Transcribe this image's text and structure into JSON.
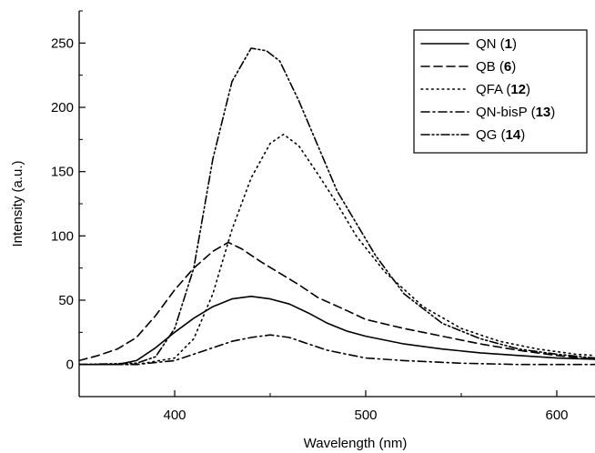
{
  "chart_data": {
    "type": "line",
    "title": "",
    "xlabel": "Wavelength (nm)",
    "ylabel": "Intensity (a.u.)",
    "xlim": [
      350,
      620
    ],
    "ylim": [
      -25,
      275
    ],
    "x_ticks": [
      400,
      500,
      600
    ],
    "y_ticks": [
      0,
      50,
      100,
      150,
      200,
      250
    ],
    "grid": false,
    "legend_position": "top-right",
    "series": [
      {
        "name": "QN",
        "legend_number": "1",
        "style": "solid",
        "color": "#000000",
        "points": [
          [
            350,
            0
          ],
          [
            370,
            0
          ],
          [
            380,
            3
          ],
          [
            390,
            13
          ],
          [
            400,
            25
          ],
          [
            410,
            36
          ],
          [
            420,
            45
          ],
          [
            430,
            51
          ],
          [
            440,
            53
          ],
          [
            450,
            51
          ],
          [
            460,
            47
          ],
          [
            470,
            40
          ],
          [
            480,
            32
          ],
          [
            490,
            26
          ],
          [
            500,
            22
          ],
          [
            520,
            16
          ],
          [
            540,
            12
          ],
          [
            560,
            9
          ],
          [
            580,
            7
          ],
          [
            600,
            5
          ],
          [
            620,
            4
          ]
        ]
      },
      {
        "name": "QB",
        "legend_number": "6",
        "style": "dashed",
        "color": "#000000",
        "points": [
          [
            350,
            3
          ],
          [
            360,
            7
          ],
          [
            370,
            12
          ],
          [
            380,
            21
          ],
          [
            390,
            38
          ],
          [
            400,
            58
          ],
          [
            410,
            75
          ],
          [
            420,
            88
          ],
          [
            428,
            95
          ],
          [
            435,
            90
          ],
          [
            445,
            80
          ],
          [
            455,
            71
          ],
          [
            465,
            62
          ],
          [
            475,
            52
          ],
          [
            490,
            42
          ],
          [
            500,
            35
          ],
          [
            520,
            28
          ],
          [
            540,
            22
          ],
          [
            560,
            16
          ],
          [
            580,
            11
          ],
          [
            600,
            7
          ],
          [
            620,
            4
          ]
        ]
      },
      {
        "name": "QFA",
        "legend_number": "12",
        "style": "dotted",
        "color": "#000000",
        "points": [
          [
            350,
            0
          ],
          [
            380,
            0
          ],
          [
            400,
            5
          ],
          [
            410,
            20
          ],
          [
            420,
            55
          ],
          [
            430,
            105
          ],
          [
            440,
            145
          ],
          [
            450,
            172
          ],
          [
            457,
            179
          ],
          [
            465,
            170
          ],
          [
            475,
            148
          ],
          [
            485,
            125
          ],
          [
            495,
            100
          ],
          [
            510,
            72
          ],
          [
            530,
            45
          ],
          [
            550,
            28
          ],
          [
            570,
            18
          ],
          [
            590,
            12
          ],
          [
            610,
            8
          ],
          [
            620,
            7
          ]
        ]
      },
      {
        "name": "QN-bisP",
        "legend_number": "13",
        "style": "dashdot",
        "color": "#000000",
        "points": [
          [
            350,
            0
          ],
          [
            380,
            0
          ],
          [
            400,
            3
          ],
          [
            410,
            8
          ],
          [
            420,
            13
          ],
          [
            430,
            18
          ],
          [
            440,
            21
          ],
          [
            450,
            23
          ],
          [
            460,
            21
          ],
          [
            470,
            16
          ],
          [
            480,
            11
          ],
          [
            490,
            8
          ],
          [
            500,
            5
          ],
          [
            520,
            3
          ],
          [
            550,
            1
          ],
          [
            580,
            0
          ],
          [
            620,
            0
          ]
        ]
      },
      {
        "name": "QG",
        "legend_number": "14",
        "style": "dashdotdot",
        "color": "#000000",
        "points": [
          [
            350,
            0
          ],
          [
            380,
            1
          ],
          [
            390,
            6
          ],
          [
            400,
            28
          ],
          [
            410,
            75
          ],
          [
            420,
            160
          ],
          [
            430,
            220
          ],
          [
            440,
            246
          ],
          [
            448,
            244
          ],
          [
            455,
            236
          ],
          [
            465,
            205
          ],
          [
            475,
            170
          ],
          [
            485,
            135
          ],
          [
            495,
            110
          ],
          [
            505,
            85
          ],
          [
            520,
            55
          ],
          [
            540,
            32
          ],
          [
            560,
            20
          ],
          [
            580,
            12
          ],
          [
            600,
            8
          ],
          [
            620,
            5
          ]
        ]
      }
    ]
  }
}
